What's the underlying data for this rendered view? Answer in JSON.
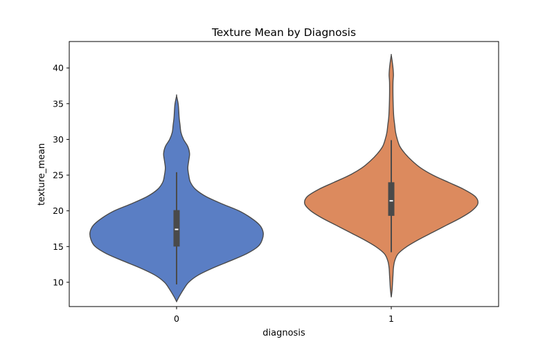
{
  "chart_data": {
    "type": "violin",
    "title": "Texture Mean by Diagnosis",
    "xlabel": "diagnosis",
    "ylabel": "texture_mean",
    "categories": [
      "0",
      "1"
    ],
    "ylim": [
      6.6,
      43.7
    ],
    "yticks": [
      10,
      15,
      20,
      25,
      30,
      35,
      40
    ],
    "grid": false,
    "colors": [
      "#5a7ec4",
      "#dc8a5e"
    ],
    "outline_color": "#4a4a4a",
    "violins": [
      {
        "category": "0",
        "color": "#5a7ec4",
        "min": 9.7,
        "q1": 15.0,
        "median": 17.4,
        "q3": 20.1,
        "max": 25.4,
        "density_extent": [
          7.3,
          36.1
        ],
        "density_profile": [
          [
            7.3,
            0.0
          ],
          [
            8.0,
            0.03
          ],
          [
            9.0,
            0.08
          ],
          [
            10.0,
            0.14
          ],
          [
            11.0,
            0.25
          ],
          [
            12.0,
            0.42
          ],
          [
            13.0,
            0.62
          ],
          [
            14.0,
            0.81
          ],
          [
            15.0,
            0.94
          ],
          [
            16.0,
            0.99
          ],
          [
            17.0,
            1.0
          ],
          [
            18.0,
            0.96
          ],
          [
            19.0,
            0.86
          ],
          [
            20.0,
            0.72
          ],
          [
            21.0,
            0.52
          ],
          [
            22.0,
            0.34
          ],
          [
            23.0,
            0.22
          ],
          [
            24.0,
            0.16
          ],
          [
            25.0,
            0.14
          ],
          [
            26.0,
            0.13
          ],
          [
            27.0,
            0.14
          ],
          [
            28.0,
            0.15
          ],
          [
            29.0,
            0.13
          ],
          [
            30.0,
            0.08
          ],
          [
            31.0,
            0.05
          ],
          [
            32.0,
            0.04
          ],
          [
            33.0,
            0.03
          ],
          [
            34.0,
            0.025
          ],
          [
            35.0,
            0.018
          ],
          [
            36.1,
            0.0
          ]
        ]
      },
      {
        "category": "1",
        "color": "#dc8a5e",
        "min": 14.2,
        "q1": 19.3,
        "median": 21.4,
        "q3": 24.0,
        "max": 29.9,
        "density_extent": [
          7.9,
          41.8
        ],
        "density_profile": [
          [
            7.9,
            0.0
          ],
          [
            9.0,
            0.01
          ],
          [
            10.0,
            0.015
          ],
          [
            11.0,
            0.02
          ],
          [
            12.0,
            0.025
          ],
          [
            13.0,
            0.04
          ],
          [
            14.0,
            0.08
          ],
          [
            15.0,
            0.18
          ],
          [
            16.0,
            0.32
          ],
          [
            17.0,
            0.48
          ],
          [
            18.0,
            0.64
          ],
          [
            19.0,
            0.8
          ],
          [
            20.0,
            0.93
          ],
          [
            21.0,
            1.0
          ],
          [
            22.0,
            0.97
          ],
          [
            23.0,
            0.84
          ],
          [
            24.0,
            0.66
          ],
          [
            25.0,
            0.48
          ],
          [
            26.0,
            0.34
          ],
          [
            27.0,
            0.24
          ],
          [
            28.0,
            0.16
          ],
          [
            29.0,
            0.1
          ],
          [
            30.0,
            0.07
          ],
          [
            31.0,
            0.05
          ],
          [
            32.0,
            0.04
          ],
          [
            33.0,
            0.03
          ],
          [
            34.0,
            0.025
          ],
          [
            36.0,
            0.02
          ],
          [
            38.0,
            0.02
          ],
          [
            39.0,
            0.025
          ],
          [
            40.0,
            0.02
          ],
          [
            41.0,
            0.01
          ],
          [
            41.8,
            0.0
          ]
        ]
      }
    ]
  }
}
